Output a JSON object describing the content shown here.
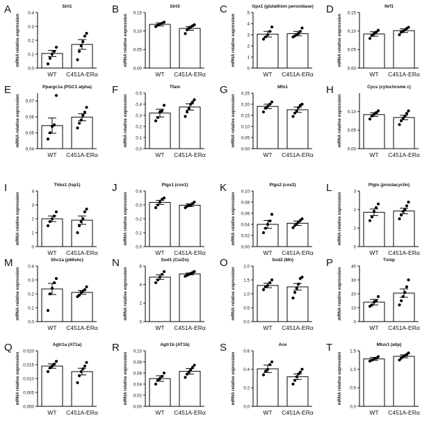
{
  "figure": {
    "xlabel_wt": "WT",
    "xlabel_mut": "C451A-ERα",
    "ylabel": "mRNA relative expression"
  },
  "chart_data": [
    {
      "letter": "A",
      "title": "Sirt1",
      "type": "bar",
      "ylim": [
        0,
        0.4
      ],
      "yticks": [
        "0.0",
        "0.1",
        "0.2",
        "0.3",
        "0.4"
      ],
      "categories": [
        "WT",
        "C451A-ERα"
      ],
      "values": [
        0.105,
        0.17
      ],
      "errors": [
        0.022,
        0.035
      ],
      "points": [
        [
          0.03,
          0.07,
          0.1,
          0.12,
          0.15
        ],
        [
          0.06,
          0.12,
          0.16,
          0.19,
          0.23,
          0.25
        ]
      ]
    },
    {
      "letter": "B",
      "title": "Sirt3",
      "type": "bar",
      "ylim": [
        0,
        0.15
      ],
      "yticks": [
        "0.00",
        "0.05",
        "0.10",
        "0.15"
      ],
      "categories": [
        "WT",
        "C451A-ERα"
      ],
      "values": [
        0.118,
        0.107
      ],
      "errors": [
        0.004,
        0.005
      ],
      "points": [
        [
          0.112,
          0.116,
          0.119,
          0.121,
          0.124
        ],
        [
          0.093,
          0.103,
          0.108,
          0.111,
          0.114,
          0.117
        ]
      ]
    },
    {
      "letter": "C",
      "title": "Gpx1 (glutathion peroxidase)",
      "type": "bar",
      "ylim": [
        0,
        5
      ],
      "yticks": [
        "0",
        "1",
        "2",
        "3",
        "4",
        "5"
      ],
      "categories": [
        "WT",
        "C451A-ERα"
      ],
      "values": [
        3.05,
        3.1
      ],
      "errors": [
        0.25,
        0.2
      ],
      "points": [
        [
          2.6,
          2.8,
          3.0,
          3.3,
          3.7
        ],
        [
          2.8,
          2.9,
          3.0,
          3.1,
          3.3,
          3.6
        ]
      ]
    },
    {
      "letter": "D",
      "title": "Nrf1",
      "type": "bar",
      "ylim": [
        0,
        0.15
      ],
      "yticks": [
        "0.00",
        "0.05",
        "0.10",
        "0.15"
      ],
      "categories": [
        "WT",
        "C451A-ERα"
      ],
      "values": [
        0.092,
        0.101
      ],
      "errors": [
        0.006,
        0.005
      ],
      "points": [
        [
          0.08,
          0.088,
          0.093,
          0.097,
          0.102
        ],
        [
          0.09,
          0.097,
          0.1,
          0.103,
          0.107,
          0.11
        ]
      ]
    },
    {
      "letter": "E",
      "title": "Ppargc1a (PGC1 alpha)",
      "type": "bar",
      "ylim": [
        0.04,
        0.075
      ],
      "yticks": [
        "0.04",
        "0.05",
        "0.06",
        "0.07"
      ],
      "categories": [
        "WT",
        "C451A-ERα"
      ],
      "values": [
        0.0545,
        0.0598
      ],
      "errors": [
        0.0048,
        0.0022
      ],
      "points": [
        [
          0.046,
          0.05,
          0.054,
          0.055,
          0.0735
        ],
        [
          0.053,
          0.056,
          0.058,
          0.061,
          0.063,
          0.066
        ]
      ]
    },
    {
      "letter": "F",
      "title": "Tfam",
      "type": "bar",
      "ylim": [
        0,
        0.5
      ],
      "yticks": [
        "0.0",
        "0.1",
        "0.2",
        "0.3",
        "0.4",
        "0.5"
      ],
      "categories": [
        "WT",
        "C451A-ERα"
      ],
      "values": [
        0.32,
        0.375
      ],
      "errors": [
        0.035,
        0.028
      ],
      "points": [
        [
          0.25,
          0.28,
          0.33,
          0.34,
          0.39
        ],
        [
          0.29,
          0.33,
          0.36,
          0.4,
          0.42,
          0.44
        ]
      ]
    },
    {
      "letter": "G",
      "title": "Mfn1",
      "type": "bar",
      "ylim": [
        0,
        0.25
      ],
      "yticks": [
        "0.00",
        "0.05",
        "0.10",
        "0.15",
        "0.20",
        "0.25"
      ],
      "categories": [
        "WT",
        "C451A-ERα"
      ],
      "values": [
        0.19,
        0.175
      ],
      "errors": [
        0.01,
        0.012
      ],
      "points": [
        [
          0.165,
          0.182,
          0.19,
          0.2,
          0.21
        ],
        [
          0.145,
          0.16,
          0.17,
          0.185,
          0.195,
          0.2
        ]
      ]
    },
    {
      "letter": "H",
      "title": "Cycs (cytochrome c)",
      "type": "bar",
      "ylim": [
        0,
        0.15
      ],
      "yticks": [
        "0.00",
        "0.05",
        "0.10"
      ],
      "categories": [
        "WT",
        "C451A-ERα"
      ],
      "values": [
        0.092,
        0.084
      ],
      "errors": [
        0.005,
        0.006
      ],
      "points": [
        [
          0.08,
          0.088,
          0.093,
          0.097,
          0.102
        ],
        [
          0.065,
          0.075,
          0.082,
          0.088,
          0.095,
          0.102
        ]
      ]
    },
    {
      "letter": "I",
      "title": "Thbs1 (tsp1)",
      "type": "bar",
      "ylim": [
        0,
        4
      ],
      "yticks": [
        "0",
        "1",
        "2",
        "3",
        "4"
      ],
      "categories": [
        "WT",
        "C451A-ERα"
      ],
      "values": [
        2.0,
        1.9
      ],
      "errors": [
        0.2,
        0.3
      ],
      "points": [
        [
          1.5,
          1.8,
          2.0,
          2.2,
          2.5
        ],
        [
          1.0,
          1.5,
          1.8,
          2.0,
          2.5,
          2.7
        ]
      ]
    },
    {
      "letter": "J",
      "title": "Ptgs1 (cox1)",
      "type": "bar",
      "ylim": [
        0,
        0.4
      ],
      "yticks": [
        "0.0",
        "0.1",
        "0.2",
        "0.3",
        "0.4"
      ],
      "categories": [
        "WT",
        "C451A-ERα"
      ],
      "values": [
        0.318,
        0.298
      ],
      "errors": [
        0.015,
        0.01
      ],
      "points": [
        [
          0.28,
          0.3,
          0.32,
          0.34,
          0.35
        ],
        [
          0.28,
          0.29,
          0.3,
          0.3,
          0.31,
          0.32
        ]
      ]
    },
    {
      "letter": "K",
      "title": "Ptgs2 (cox2)",
      "type": "bar",
      "ylim": [
        0,
        0.1
      ],
      "yticks": [
        "0.00",
        "0.02",
        "0.04",
        "0.06",
        "0.08",
        "0.10"
      ],
      "categories": [
        "WT",
        "C451A-ERα"
      ],
      "values": [
        0.04,
        0.042
      ],
      "errors": [
        0.007,
        0.004
      ],
      "points": [
        [
          0.025,
          0.033,
          0.04,
          0.046,
          0.058
        ],
        [
          0.034,
          0.038,
          0.041,
          0.044,
          0.047,
          0.05
        ]
      ]
    },
    {
      "letter": "L",
      "title": "Ptgis (prostacyclin)",
      "type": "bar",
      "ylim": [
        0,
        3
      ],
      "yticks": [
        "0",
        "1",
        "2",
        "3"
      ],
      "categories": [
        "WT",
        "C451A-ERα"
      ],
      "values": [
        1.85,
        1.92
      ],
      "errors": [
        0.18,
        0.15
      ],
      "points": [
        [
          1.4,
          1.6,
          1.9,
          2.1,
          2.3
        ],
        [
          1.5,
          1.7,
          1.9,
          2.0,
          2.2,
          2.4
        ]
      ]
    },
    {
      "letter": "M",
      "title": "Shc1a (p66shc)",
      "type": "bar",
      "ylim": [
        0,
        0.4
      ],
      "yticks": [
        "0.0",
        "0.1",
        "0.2",
        "0.3",
        "0.4"
      ],
      "categories": [
        "WT",
        "C451A-ERα"
      ],
      "values": [
        0.235,
        0.21
      ],
      "errors": [
        0.04,
        0.013
      ],
      "points": [
        [
          0.08,
          0.2,
          0.24,
          0.28,
          0.31
        ],
        [
          0.18,
          0.19,
          0.21,
          0.22,
          0.23,
          0.25
        ]
      ]
    },
    {
      "letter": "N",
      "title": "Sod1 (Cu/Zn)",
      "type": "bar",
      "ylim": [
        0,
        6
      ],
      "yticks": [
        "0",
        "2",
        "4",
        "6"
      ],
      "categories": [
        "WT",
        "C451A-ERα"
      ],
      "values": [
        4.8,
        5.15
      ],
      "errors": [
        0.25,
        0.1
      ],
      "points": [
        [
          4.2,
          4.5,
          4.8,
          5.1,
          5.4
        ],
        [
          4.9,
          5.0,
          5.1,
          5.2,
          5.3,
          5.4
        ]
      ]
    },
    {
      "letter": "O",
      "title": "Sod2 (Mn)",
      "type": "bar",
      "ylim": [
        0,
        2
      ],
      "yticks": [
        "0.0",
        "0.5",
        "1.0",
        "1.5",
        "2.0"
      ],
      "categories": [
        "WT",
        "C451A-ERα"
      ],
      "values": [
        1.3,
        1.25
      ],
      "errors": [
        0.08,
        0.12
      ],
      "points": [
        [
          1.15,
          1.25,
          1.3,
          1.4,
          1.5
        ],
        [
          0.85,
          1.05,
          1.2,
          1.35,
          1.55,
          1.6
        ]
      ]
    },
    {
      "letter": "P",
      "title": "Txnip",
      "type": "bar",
      "ylim": [
        0,
        40
      ],
      "yticks": [
        "0",
        "10",
        "20",
        "30",
        "40"
      ],
      "categories": [
        "WT",
        "C451A-ERα"
      ],
      "values": [
        14,
        20.5
      ],
      "errors": [
        2.0,
        3.0
      ],
      "points": [
        [
          11,
          12,
          14,
          15,
          18
        ],
        [
          12,
          15,
          18,
          21,
          25,
          30
        ]
      ]
    },
    {
      "letter": "Q",
      "title": "Agtr1a (AT1a)",
      "type": "bar",
      "ylim": [
        0,
        0.02
      ],
      "yticks": [
        "0.000",
        "0.005",
        "0.010",
        "0.015",
        "0.020"
      ],
      "categories": [
        "WT",
        "C451A-ERα"
      ],
      "values": [
        0.0145,
        0.0125
      ],
      "errors": [
        0.0008,
        0.0012
      ],
      "points": [
        [
          0.0125,
          0.0138,
          0.0145,
          0.0152,
          0.0162
        ],
        [
          0.0085,
          0.011,
          0.0125,
          0.0135,
          0.0145,
          0.0158
        ]
      ]
    },
    {
      "letter": "R",
      "title": "Agtr1b (AT1b)",
      "type": "bar",
      "ylim": [
        0,
        0.1
      ],
      "yticks": [
        "0.00",
        "0.02",
        "0.04",
        "0.06",
        "0.08",
        "0.10"
      ],
      "categories": [
        "WT",
        "C451A-ERα"
      ],
      "values": [
        0.05,
        0.063
      ],
      "errors": [
        0.005,
        0.005
      ],
      "points": [
        [
          0.04,
          0.047,
          0.05,
          0.054,
          0.06
        ],
        [
          0.052,
          0.058,
          0.062,
          0.066,
          0.07,
          0.074
        ]
      ]
    },
    {
      "letter": "S",
      "title": "Ace",
      "type": "bar",
      "ylim": [
        0,
        0.6
      ],
      "yticks": [
        "0.0",
        "0.2",
        "0.4",
        "0.6"
      ],
      "categories": [
        "WT",
        "C451A-ERα"
      ],
      "values": [
        0.405,
        0.32
      ],
      "errors": [
        0.04,
        0.03
      ],
      "points": [
        [
          0.34,
          0.38,
          0.4,
          0.45,
          0.48
        ],
        [
          0.24,
          0.28,
          0.32,
          0.35,
          0.37,
          0.4
        ]
      ]
    },
    {
      "letter": "T",
      "title": "Mtus1 (atip)",
      "type": "bar",
      "ylim": [
        0,
        1.5
      ],
      "yticks": [
        "0.0",
        "0.5",
        "1.0",
        "1.5"
      ],
      "categories": [
        "WT",
        "C451A-ERα"
      ],
      "values": [
        1.28,
        1.35
      ],
      "errors": [
        0.04,
        0.04
      ],
      "points": [
        [
          1.22,
          1.25,
          1.28,
          1.3,
          1.34
        ],
        [
          1.25,
          1.3,
          1.34,
          1.37,
          1.4,
          1.44
        ]
      ]
    }
  ]
}
